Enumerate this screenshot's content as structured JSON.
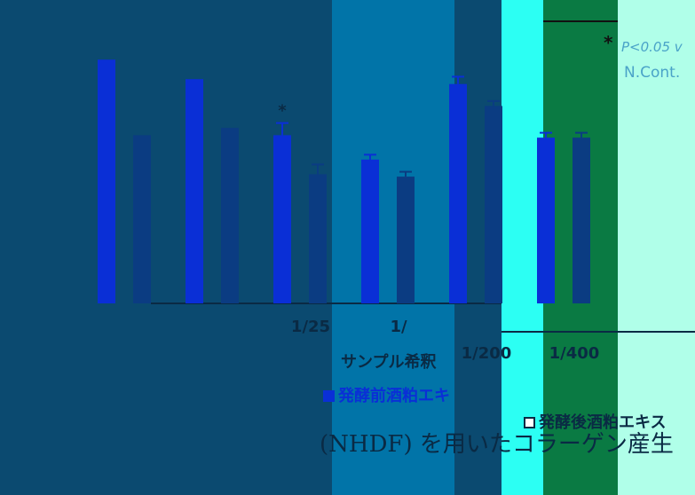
{
  "chart_data": {
    "type": "bar",
    "xlabel": "サンプル希釈",
    "categories": [
      "",
      "",
      "1/25",
      "1/",
      "1/200",
      "1/400"
    ],
    "series": [
      {
        "name": "発酵前酒粕エキ",
        "values": [
          100,
          92,
          69,
          59,
          90,
          68
        ],
        "errors": [
          0,
          0,
          5,
          2,
          3,
          2
        ],
        "color": "#0a2fd6"
      },
      {
        "name": "発酵後酒粕エキス",
        "values": [
          69,
          72,
          53,
          52,
          81,
          68
        ],
        "errors": [
          0,
          0,
          4,
          2,
          2,
          2
        ],
        "color": "#0b3c82"
      }
    ],
    "significance": [
      "",
      "",
      "*",
      "",
      "",
      ""
    ],
    "ylim": [
      0,
      115
    ],
    "grid": false,
    "legend": "bottom"
  },
  "annotations": {
    "p_value": "P<0.05 v",
    "significance_mark": "*",
    "control_label": "N.Cont."
  },
  "caption": "(NHDF) を用いたコラーゲン産生",
  "colors": {
    "band_dark": "#0b4a70",
    "band_mid": "#0174a8",
    "band_cyan": "#2cfff3",
    "band_green": "#0a7a43",
    "band_mint": "#b0ffe9"
  }
}
